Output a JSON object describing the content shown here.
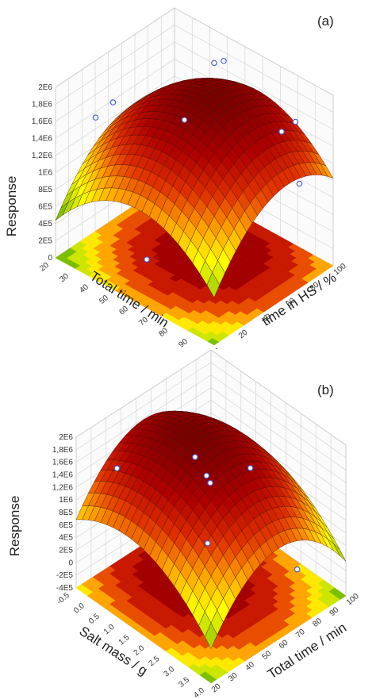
{
  "chart_data": [
    {
      "panel_label": "(a)",
      "type": "surface3d",
      "z_label": "Response",
      "x_label": "Total time / min",
      "y_label": "time in HS / %",
      "x_ticks": [
        "20",
        "30",
        "40",
        "50",
        "60",
        "70",
        "80",
        "90",
        "100"
      ],
      "y_ticks": [
        "0",
        "20",
        "40",
        "60",
        "80",
        "100"
      ],
      "z_ticks": [
        "0",
        "2E5",
        "4E5",
        "6E5",
        "8E5",
        "1E6",
        "1,2E6",
        "1,4E6",
        "1,6E6",
        "1,8E6",
        "2E6"
      ],
      "xlim": [
        20,
        100
      ],
      "ylim": [
        0,
        100
      ],
      "zlim": [
        0,
        2000000
      ],
      "colormap": [
        "#1a9a00",
        "#9acd00",
        "#ffff00",
        "#ffa500",
        "#e03000",
        "#b00000",
        "#7a0000"
      ],
      "contour_floor": true,
      "surface_max": 1850000,
      "surface_min": 350000,
      "peak": {
        "x": 62,
        "y": 62,
        "z": 1850000
      },
      "observed_points": [
        {
          "x": 33,
          "y": 12,
          "z": 1700000
        },
        {
          "x": 55,
          "y": 50,
          "z": 1600000
        },
        {
          "x": 52,
          "y": 80,
          "z": 1950000
        },
        {
          "x": 52,
          "y": 88,
          "z": 1900000
        },
        {
          "x": 92,
          "y": 70,
          "z": 1750000
        },
        {
          "x": 90,
          "y": 85,
          "z": 1700000
        },
        {
          "x": 92,
          "y": 85,
          "z": 1000000
        },
        {
          "x": 28,
          "y": 35,
          "z": 1600000
        },
        {
          "x": 60,
          "y": 10,
          "z": 400000
        }
      ]
    },
    {
      "panel_label": "(b)",
      "type": "surface3d",
      "z_label": "Response",
      "x_label": "Salt mass / g",
      "y_label": "Total time / min",
      "x_ticks": [
        "-0.5",
        "0.0",
        "0.5",
        "1.0",
        "1.5",
        "2.0",
        "2.5",
        "3.0",
        "3.5",
        "4.0"
      ],
      "y_ticks": [
        "20",
        "30",
        "40",
        "50",
        "60",
        "70",
        "80",
        "90",
        "100"
      ],
      "z_ticks": [
        "-4E5",
        "-2E5",
        "0",
        "2E5",
        "4E5",
        "6E5",
        "8E5",
        "1E6",
        "1,2E6",
        "1,4E6",
        "1,6E6",
        "1,8E6",
        "2E6"
      ],
      "xlim": [
        -0.5,
        4.0
      ],
      "ylim": [
        100,
        20
      ],
      "zlim": [
        -400000,
        2000000
      ],
      "colormap": [
        "#1a9a00",
        "#9acd00",
        "#ffff00",
        "#ffa500",
        "#e03000",
        "#b00000",
        "#7a0000"
      ],
      "contour_floor": true,
      "surface_max": 1900000,
      "surface_min": -100000,
      "peak": {
        "x": 1.2,
        "y": 60,
        "z": 1900000
      },
      "observed_points": [
        {
          "x": 0.3,
          "y": 90,
          "z": 1600000
        },
        {
          "x": 1.5,
          "y": 65,
          "z": 1750000
        },
        {
          "x": 1.6,
          "y": 60,
          "z": 1400000
        },
        {
          "x": 2.5,
          "y": 50,
          "z": 1650000
        },
        {
          "x": 2.2,
          "y": 70,
          "z": 700000
        },
        {
          "x": 0.6,
          "y": 40,
          "z": 600000
        },
        {
          "x": 3.5,
          "y": 40,
          "z": 200000
        }
      ]
    }
  ]
}
